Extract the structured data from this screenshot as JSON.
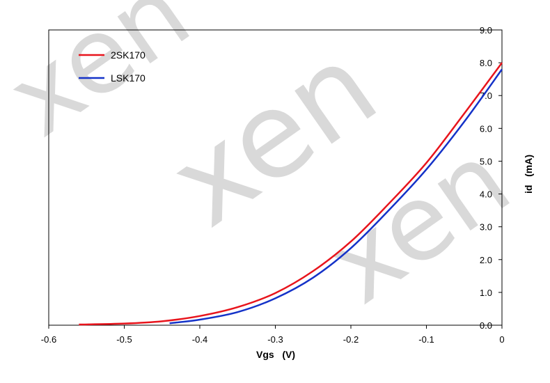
{
  "chart_data": {
    "type": "line",
    "title": "",
    "xlabel": "Vgs   (V)",
    "ylabel": "id   (mA)",
    "xlim": [
      -0.6,
      0
    ],
    "ylim": [
      0,
      9
    ],
    "x_ticks": [
      "-0.6",
      "-0.5",
      "-0.4",
      "-0.3",
      "-0.2",
      "-0.1",
      "0"
    ],
    "y_ticks": [
      "0.0",
      "1.0",
      "2.0",
      "3.0",
      "4.0",
      "5.0",
      "6.0",
      "7.0",
      "8.0",
      "9.0"
    ],
    "y_axis_side": "right",
    "grid": false,
    "legend_position": "top-left",
    "series": [
      {
        "name": "2SK170",
        "color": "#e8141c",
        "x": [
          -0.56,
          -0.5,
          -0.45,
          -0.4,
          -0.35,
          -0.3,
          -0.25,
          -0.2,
          -0.15,
          -0.1,
          -0.05,
          0
        ],
        "y": [
          0.02,
          0.05,
          0.12,
          0.28,
          0.55,
          0.98,
          1.65,
          2.55,
          3.7,
          4.95,
          6.45,
          8.0
        ]
      },
      {
        "name": "LSK170",
        "color": "#1432c8",
        "x": [
          -0.44,
          -0.4,
          -0.35,
          -0.3,
          -0.25,
          -0.2,
          -0.15,
          -0.1,
          -0.05,
          0
        ],
        "y": [
          0.06,
          0.17,
          0.4,
          0.82,
          1.45,
          2.35,
          3.5,
          4.75,
          6.2,
          7.8
        ]
      }
    ],
    "watermark": "xen"
  }
}
